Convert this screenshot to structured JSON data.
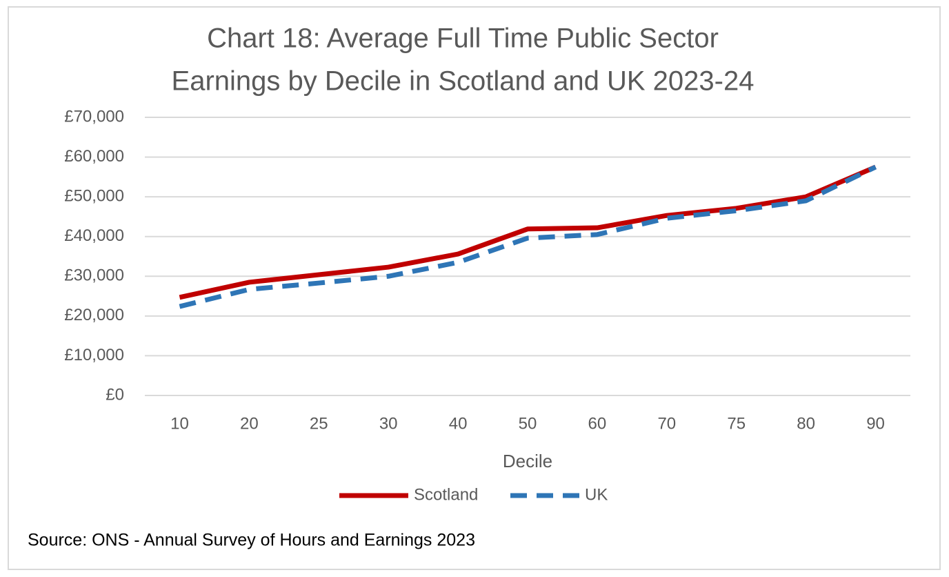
{
  "chart_data": {
    "type": "line",
    "title": "Chart 18: Average Full Time Public Sector",
    "subtitle": "Earnings by Decile in Scotland and UK 2023-24",
    "x_label": "Decile",
    "source": "Source: ONS - Annual Survey of Hours and Earnings 2023",
    "categories": [
      "10",
      "20",
      "25",
      "30",
      "40",
      "50",
      "60",
      "70",
      "75",
      "80",
      "90"
    ],
    "series": [
      {
        "name": "Scotland",
        "color": "#c00000",
        "dashed": false,
        "values": [
          24700,
          28500,
          30400,
          32300,
          35600,
          41900,
          42200,
          45300,
          47100,
          50000,
          57500
        ]
      },
      {
        "name": "UK",
        "color": "#2e75b6",
        "dashed": true,
        "values": [
          22400,
          26700,
          28300,
          30000,
          33500,
          39600,
          40500,
          44600,
          46500,
          49000,
          57500
        ]
      }
    ],
    "ylim": [
      0,
      70000
    ],
    "yticks": [
      {
        "value": 0,
        "label": "£0"
      },
      {
        "value": 10000,
        "label": "£10,000"
      },
      {
        "value": 20000,
        "label": "£20,000"
      },
      {
        "value": 30000,
        "label": "£30,000"
      },
      {
        "value": 40000,
        "label": "£40,000"
      },
      {
        "value": 50000,
        "label": "£50,000"
      },
      {
        "value": 60000,
        "label": "£60,000"
      },
      {
        "value": 70000,
        "label": "£70,000"
      }
    ],
    "grid": true,
    "legend": "bottom"
  }
}
